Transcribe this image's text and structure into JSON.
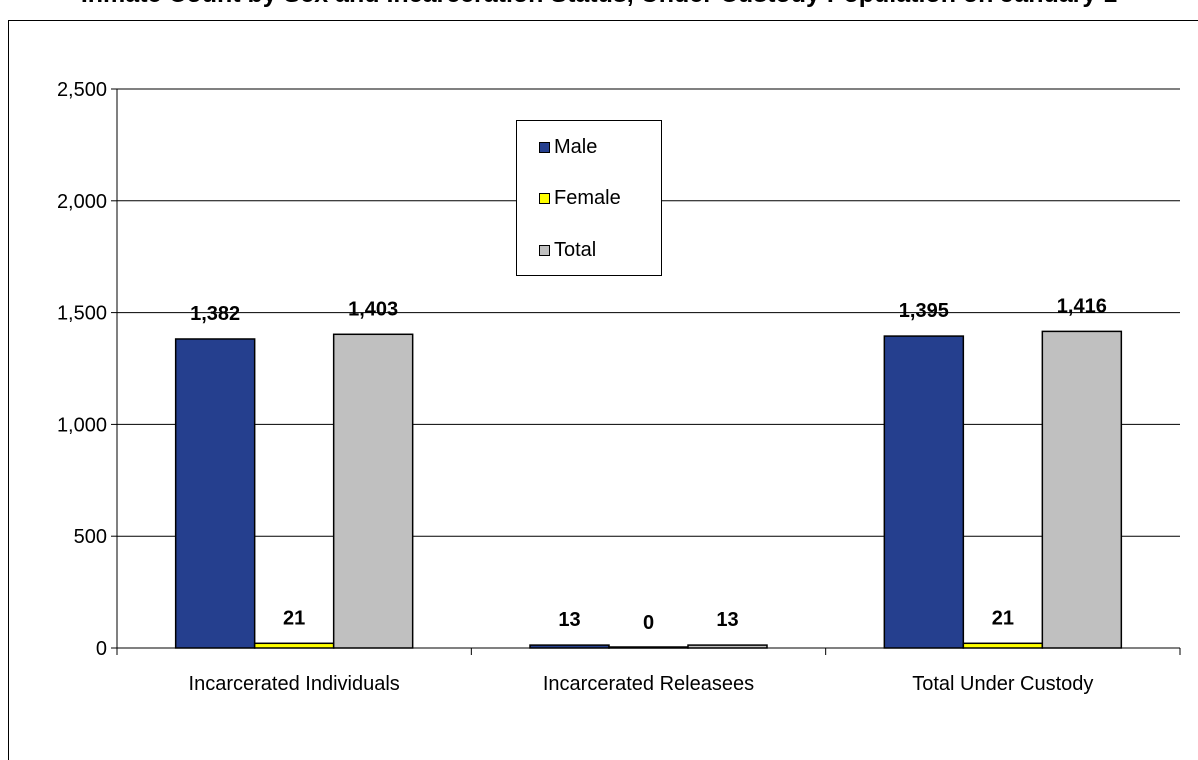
{
  "chart_data": {
    "type": "bar",
    "title": "Inmate Count by Sex and Incarceration Status, Under Custody Population on January 1",
    "xlabel": "",
    "ylabel": "",
    "ylim": [
      0,
      2500
    ],
    "yticks": [
      0,
      500,
      1000,
      1500,
      2000,
      2500
    ],
    "ytick_labels": [
      "0",
      "500",
      "1,000",
      "1,500",
      "2,000",
      "2,500"
    ],
    "grid": true,
    "legend_position": "top-center",
    "categories": [
      "Incarcerated Individuals",
      "Incarcerated Releasees",
      "Total Under Custody"
    ],
    "series": [
      {
        "name": "Male",
        "color": "#253F8E",
        "values": [
          1382,
          13,
          1395
        ],
        "labels": [
          "1,382",
          "13",
          "1,395"
        ]
      },
      {
        "name": "Female",
        "color": "#FFFF00",
        "values": [
          21,
          0,
          21
        ],
        "labels": [
          "21",
          "0",
          "21"
        ]
      },
      {
        "name": "Total",
        "color": "#C0C0C0",
        "values": [
          1403,
          13,
          1416
        ],
        "labels": [
          "1,403",
          "13",
          "1,416"
        ]
      }
    ]
  }
}
